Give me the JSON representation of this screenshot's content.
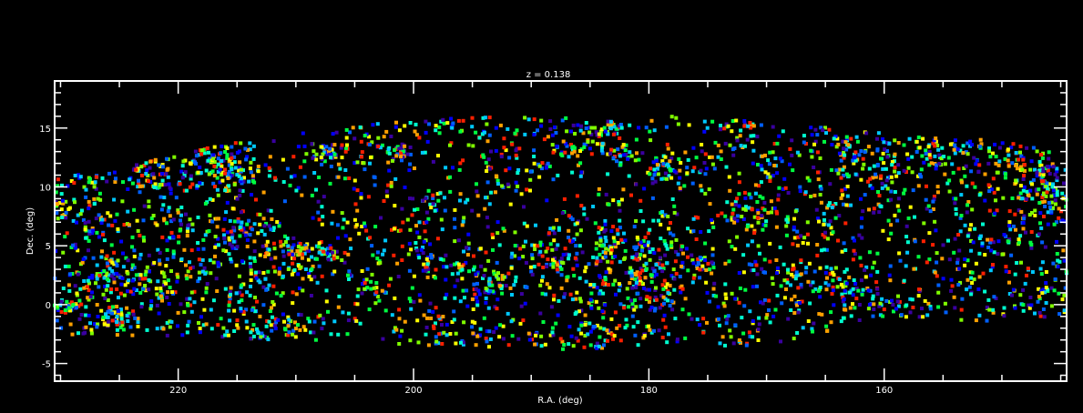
{
  "chart_data": {
    "type": "scatter",
    "title": "z = 0.138",
    "xlabel": "R.A. (deg)",
    "ylabel": "Dec. (deg)",
    "xlim": [
      230.5,
      144.5
    ],
    "ylim": [
      -6.5,
      19
    ],
    "x_ticks": [
      220,
      200,
      180,
      160
    ],
    "y_ticks": [
      -5,
      0,
      5,
      10,
      15
    ],
    "point_count": 4200,
    "point_colors": [
      "#3a00a0",
      "#0000ff",
      "#0060ff",
      "#00c8ff",
      "#00ffd0",
      "#00ff40",
      "#80ff00",
      "#ffff00",
      "#ffa000",
      "#ff2000"
    ],
    "background_color": "#000000",
    "axis_color": "#ffffff",
    "footprint": {
      "x_range": [
        144.5,
        230.5
      ],
      "upper_edge": [
        [
          230.5,
          10.8
        ],
        [
          225,
          11.5
        ],
        [
          220,
          13
        ],
        [
          212,
          14.2
        ],
        [
          205,
          15.2
        ],
        [
          195,
          16
        ],
        [
          185,
          16
        ],
        [
          175,
          16
        ],
        [
          168,
          15.5
        ],
        [
          160,
          14.8
        ],
        [
          152,
          14.2
        ],
        [
          144.5,
          13
        ]
      ],
      "lower_edge": [
        [
          230.5,
          -2.5
        ],
        [
          220,
          -2.8
        ],
        [
          210,
          -3
        ],
        [
          200,
          -3.5
        ],
        [
          190,
          -3.8
        ],
        [
          180,
          -3.8
        ],
        [
          170,
          -3.5
        ],
        [
          165,
          -2.5
        ],
        [
          160,
          -1
        ],
        [
          150,
          -1.5
        ],
        [
          144.5,
          -1
        ]
      ]
    }
  }
}
